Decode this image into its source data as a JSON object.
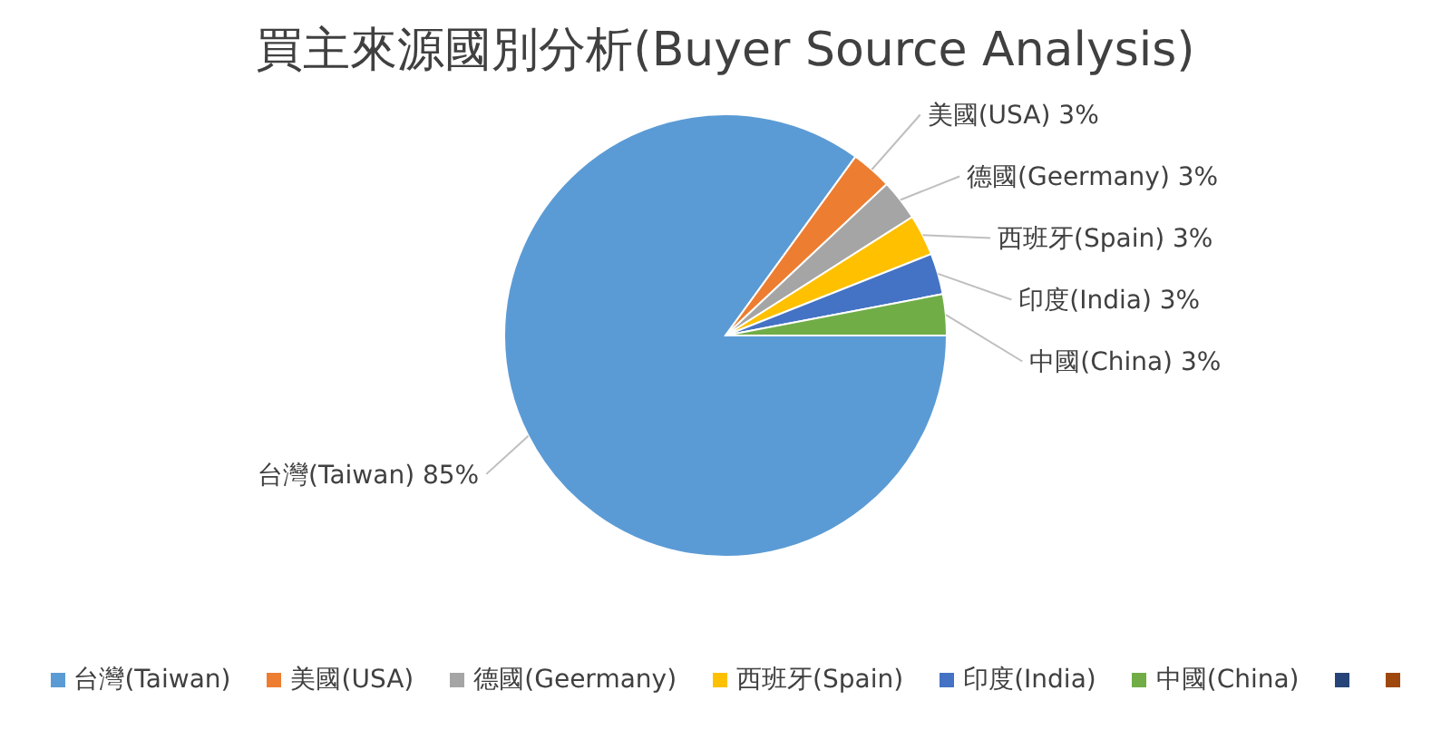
{
  "chart_data": {
    "type": "pie",
    "title": "買主來源國別分析(Buyer Source Analysis)",
    "categories": [
      "台灣(Taiwan)",
      "美國(USA)",
      "德國(Geermany)",
      "西班牙(Spain)",
      "印度(India)",
      "中國(China)",
      null,
      null
    ],
    "values": [
      85,
      3,
      3,
      3,
      3,
      3,
      0,
      0
    ],
    "colors": [
      "#5b9bd5",
      "#ed7d31",
      "#a5a5a5",
      "#ffc000",
      "#4472c4",
      "#70ad47",
      "#264478",
      "#9e480e"
    ],
    "value_labels": [
      "85%",
      "3%",
      "3%",
      "3%",
      "3%",
      "3%",
      null,
      null
    ],
    "legend": "bottom"
  }
}
